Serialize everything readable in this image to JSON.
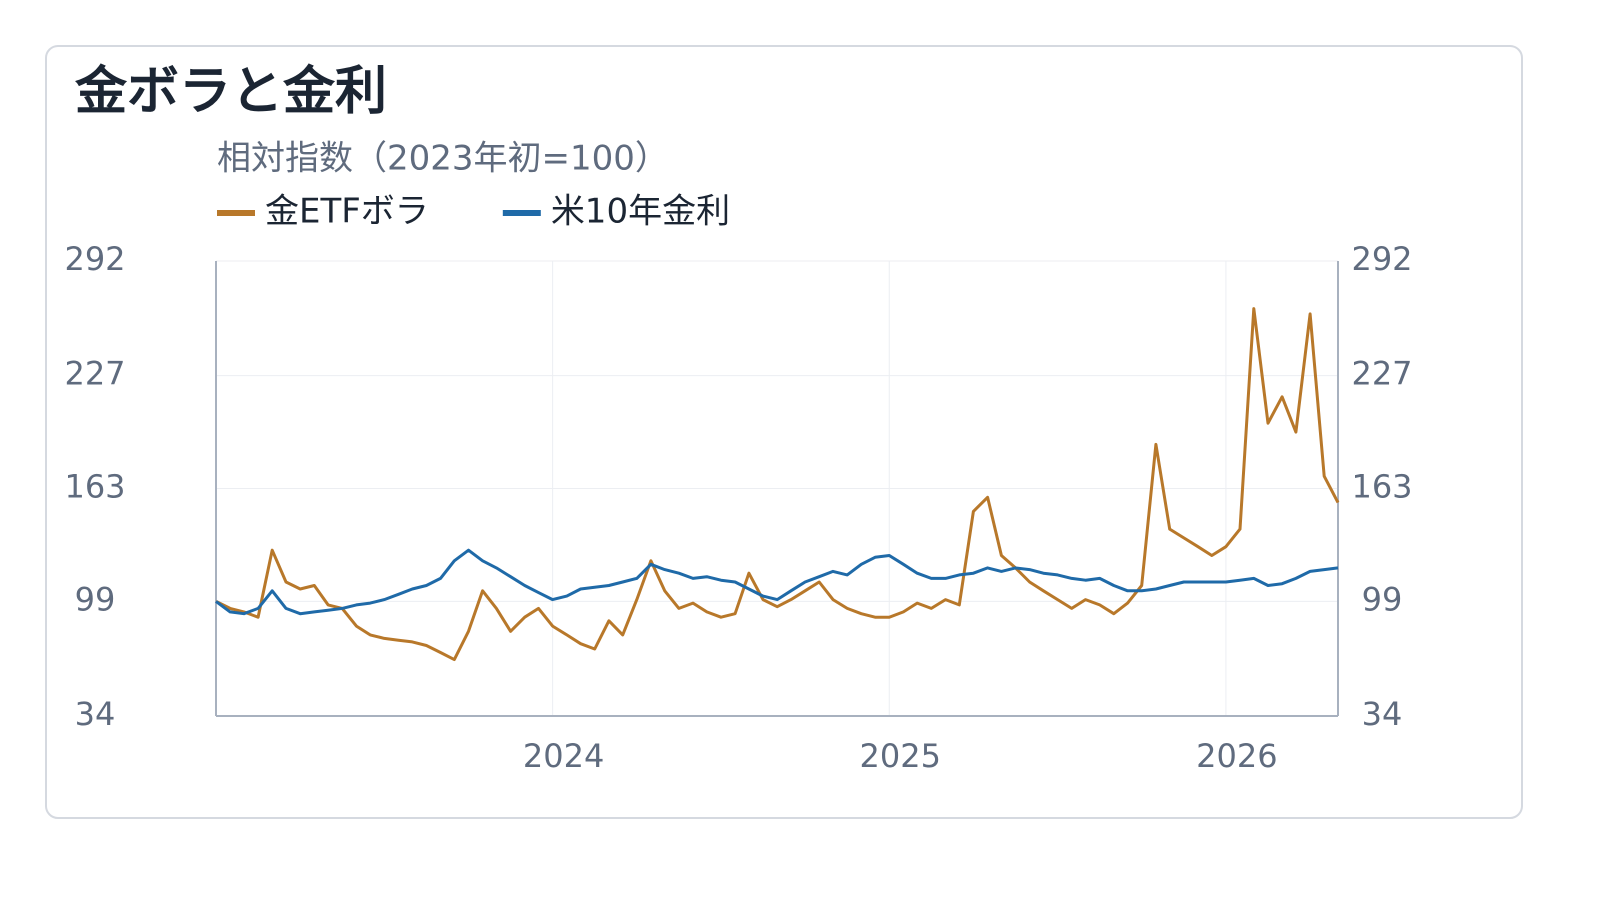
{
  "chart_data": {
    "type": "line",
    "title": "金ボラと金利",
    "subtitle": "相対指数（2023年初=100）",
    "x": [
      2023,
      2023.042,
      2023.083,
      2023.125,
      2023.167,
      2023.208,
      2023.25,
      2023.292,
      2023.333,
      2023.375,
      2023.417,
      2023.458,
      2023.5,
      2023.542,
      2023.583,
      2023.625,
      2023.667,
      2023.708,
      2023.75,
      2023.792,
      2023.833,
      2023.875,
      2023.917,
      2023.958,
      2024,
      2024.042,
      2024.083,
      2024.125,
      2024.167,
      2024.208,
      2024.25,
      2024.292,
      2024.333,
      2024.375,
      2024.417,
      2024.458,
      2024.5,
      2024.542,
      2024.583,
      2024.625,
      2024.667,
      2024.708,
      2024.75,
      2024.792,
      2024.833,
      2024.875,
      2024.917,
      2024.958,
      2025,
      2025.042,
      2025.083,
      2025.125,
      2025.167,
      2025.208,
      2025.25,
      2025.292,
      2025.333,
      2025.375,
      2025.417,
      2025.458,
      2025.5,
      2025.542,
      2025.583,
      2025.625,
      2025.667,
      2025.708,
      2025.75,
      2025.792,
      2025.833,
      2025.875,
      2025.917,
      2025.958,
      2026,
      2026.042,
      2026.083,
      2026.125,
      2026.167,
      2026.208,
      2026.25,
      2026.292,
      2026.333
    ],
    "series": [
      {
        "name": "金ETFボラ",
        "color": "#b8782a",
        "values": [
          99,
          95,
          93,
          90,
          128,
          110,
          106,
          108,
          97,
          95,
          85,
          80,
          78,
          77,
          76,
          74,
          70,
          66,
          82,
          105,
          95,
          82,
          90,
          95,
          85,
          80,
          75,
          72,
          88,
          80,
          100,
          122,
          105,
          95,
          98,
          93,
          90,
          92,
          115,
          100,
          96,
          100,
          105,
          110,
          100,
          95,
          92,
          90,
          90,
          93,
          98,
          95,
          100,
          97,
          150,
          158,
          125,
          118,
          110,
          105,
          100,
          95,
          100,
          97,
          92,
          98,
          108,
          188,
          140,
          135,
          130,
          125,
          130,
          140,
          265,
          200,
          215,
          195,
          262,
          170,
          155
        ]
      },
      {
        "name": "米10年金利",
        "color": "#1f6aa8",
        "axis": "y2",
        "values": [
          99,
          93,
          92,
          95,
          105,
          95,
          92,
          93,
          94,
          95,
          97,
          98,
          100,
          103,
          106,
          108,
          112,
          122,
          128,
          122,
          118,
          113,
          108,
          104,
          100,
          102,
          106,
          107,
          108,
          110,
          112,
          120,
          117,
          115,
          112,
          113,
          111,
          110,
          106,
          102,
          100,
          105,
          110,
          113,
          116,
          114,
          120,
          124,
          125,
          120,
          115,
          112,
          112,
          114,
          115,
          118,
          116,
          118,
          117,
          115,
          114,
          112,
          111,
          112,
          108,
          105,
          105,
          106,
          108,
          110,
          110,
          110,
          110,
          111,
          112,
          108,
          109,
          112,
          116,
          117,
          118
        ]
      }
    ],
    "xlim": [
      2023,
      2026.333
    ],
    "xticks": [
      2024,
      2025,
      2026
    ],
    "ylim": [
      34,
      292
    ],
    "yticks": [
      34,
      99,
      163,
      227,
      292
    ],
    "y2lim": [
      34,
      292
    ],
    "y2ticks": [
      34,
      99,
      163,
      227,
      292
    ],
    "grid": true
  }
}
